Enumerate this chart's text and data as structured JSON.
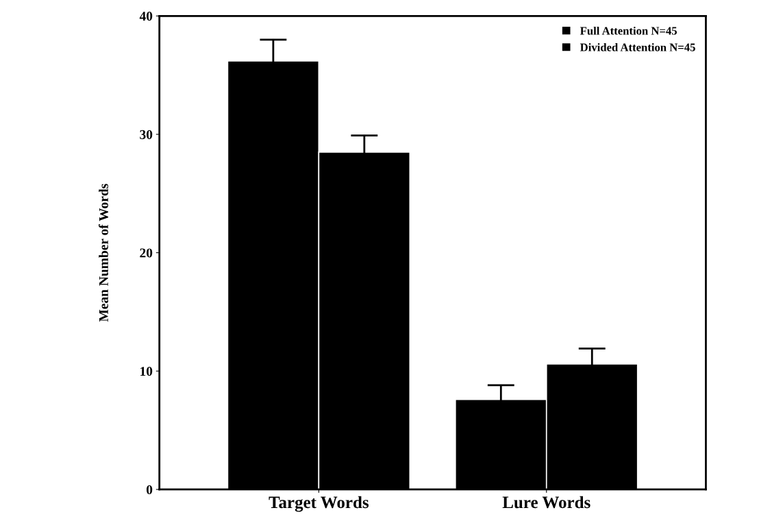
{
  "chart_data": {
    "type": "bar",
    "ylabel": "Mean Number of Words",
    "categories": [
      "Target Words",
      "Lure Words"
    ],
    "series": [
      {
        "name": "Full Attention N=45",
        "color": "#000000",
        "values": [
          36.2,
          7.6
        ],
        "errors": [
          1.8,
          1.2
        ]
      },
      {
        "name": "Divided Attention N=45",
        "color": "#000000",
        "values": [
          28.5,
          10.6
        ],
        "errors": [
          1.4,
          1.3
        ]
      }
    ],
    "ylim": [
      0,
      40
    ],
    "yticks": [
      0,
      10,
      20,
      30,
      40
    ],
    "grid": false,
    "legend": "top right"
  }
}
